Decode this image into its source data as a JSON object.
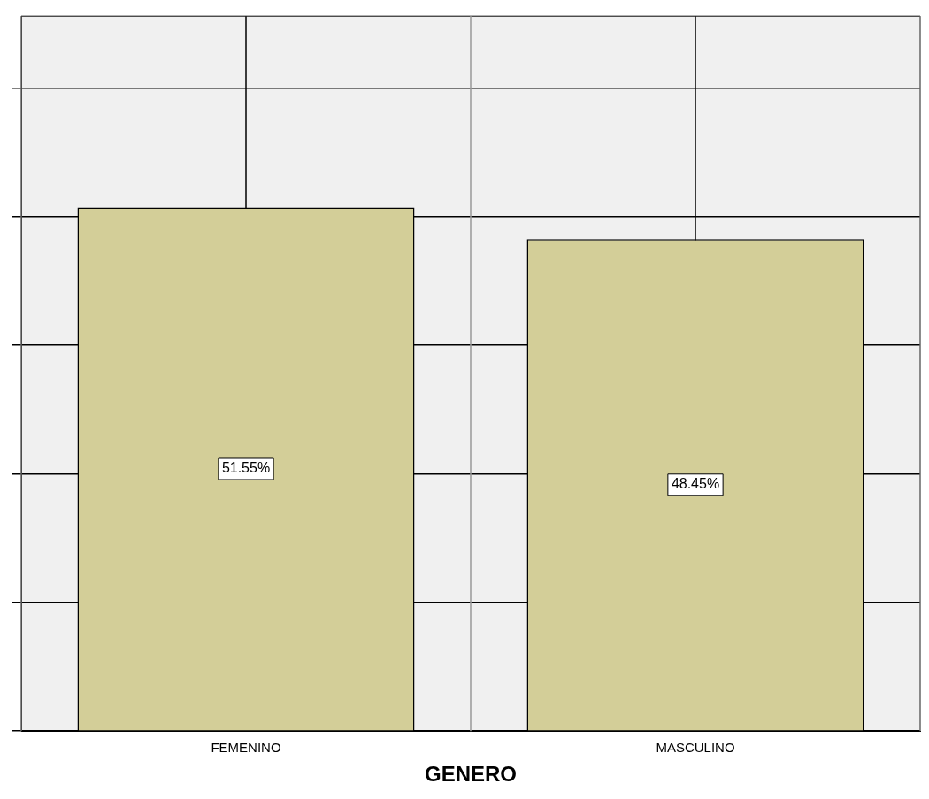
{
  "chart_data": {
    "type": "bar",
    "xlabel": "GENERO",
    "categories": [
      "FEMENINO",
      "MASCULINO"
    ],
    "values": [
      51.55,
      48.45
    ],
    "color": "#d3ce98",
    "value_labels": [
      "51.55%",
      "48.45%"
    ],
    "ylim": [
      0,
      70.4
    ],
    "yticks": [
      {
        "value": 0,
        "label": null
      },
      {
        "value": 12.7,
        "label": null
      },
      {
        "value": 25.3,
        "label": null
      },
      {
        "value": 38,
        "label": null
      },
      {
        "value": 50.7,
        "label": null
      },
      {
        "value": 63.3,
        "label": null
      }
    ],
    "grid": true
  }
}
